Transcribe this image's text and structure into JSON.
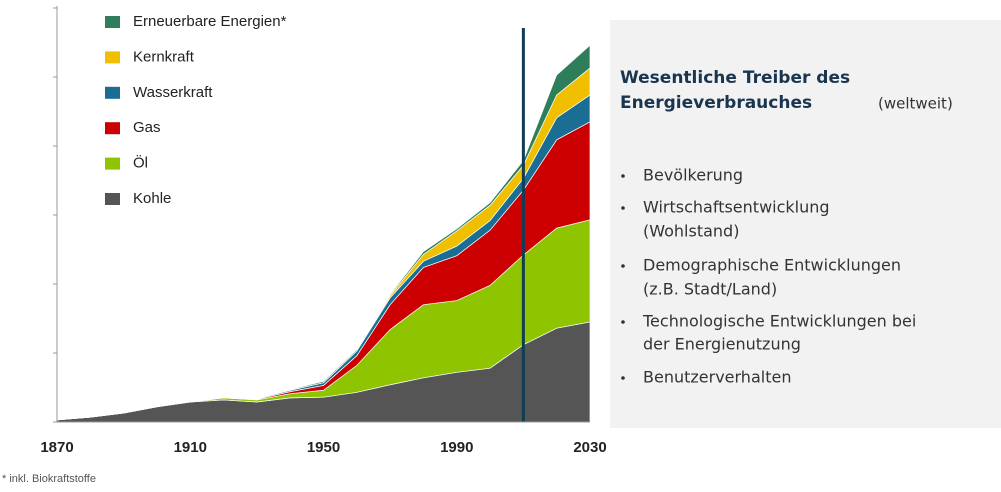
{
  "chart_data": {
    "type": "stacked-area",
    "x": [
      1870,
      1880,
      1890,
      1900,
      1910,
      1920,
      1930,
      1940,
      1950,
      1960,
      1970,
      1980,
      1990,
      2000,
      2010,
      2020,
      2030
    ],
    "xlim": [
      1870,
      2030
    ],
    "xticks": [
      1870,
      1910,
      1950,
      1990,
      2030
    ],
    "ylim": [
      0,
      6
    ],
    "yticks": [
      0,
      1,
      2,
      3,
      4,
      5,
      6
    ],
    "divider_x": 2010,
    "divider_color": "#0f3d56",
    "series": [
      {
        "name": "Kohle",
        "color": "#555555",
        "values": [
          0.03,
          0.07,
          0.13,
          0.22,
          0.29,
          0.32,
          0.29,
          0.35,
          0.36,
          0.43,
          0.54,
          0.64,
          0.72,
          0.78,
          1.12,
          1.36,
          1.45
        ]
      },
      {
        "name": "Öl",
        "color": "#8fc400",
        "values": [
          0,
          0,
          0,
          0,
          0,
          0.03,
          0.03,
          0.06,
          0.1,
          0.39,
          0.8,
          1.06,
          1.04,
          1.2,
          1.3,
          1.45,
          1.48
        ]
      },
      {
        "name": "Gas",
        "color": "#cc0000",
        "values": [
          0,
          0,
          0,
          0,
          0.01,
          0.01,
          0.01,
          0.03,
          0.07,
          0.14,
          0.36,
          0.54,
          0.65,
          0.8,
          0.94,
          1.28,
          1.42
        ]
      },
      {
        "name": "Wasserkraft",
        "color": "#1a6e94",
        "values": [
          0,
          0,
          0,
          0,
          0.01,
          0.01,
          0.01,
          0.02,
          0.04,
          0.07,
          0.1,
          0.09,
          0.14,
          0.14,
          0.17,
          0.32,
          0.39
        ]
      },
      {
        "name": "Kernkraft",
        "color": "#f0c000",
        "values": [
          0,
          0,
          0,
          0,
          0,
          0,
          0,
          0,
          0,
          0,
          0.03,
          0.1,
          0.22,
          0.22,
          0.19,
          0.33,
          0.39
        ]
      },
      {
        "name": "Erneuerbare Energien*",
        "color": "#2e7d5b",
        "values": [
          0.01,
          0.01,
          0.01,
          0.01,
          0.01,
          0.01,
          0.01,
          0.01,
          0.02,
          0.02,
          0.02,
          0.04,
          0.03,
          0.04,
          0.07,
          0.29,
          0.33
        ]
      }
    ],
    "footnote": "* inkl. Biokraftstoffe"
  },
  "panel": {
    "title": [
      "Wesentliche Treiber des",
      "Energieverbrauches"
    ],
    "subtitle": "(weltweit)",
    "bullets": [
      [
        "Bevölkerung"
      ],
      [
        "Wirtschaftsentwicklung",
        "(Wohlstand)"
      ],
      [
        "Demographische Entwicklungen",
        "(z.B. Stadt/Land)"
      ],
      [
        "Technologische Entwicklungen bei",
        "der Energienutzung"
      ],
      [
        "Benutzerverhalten"
      ]
    ]
  }
}
